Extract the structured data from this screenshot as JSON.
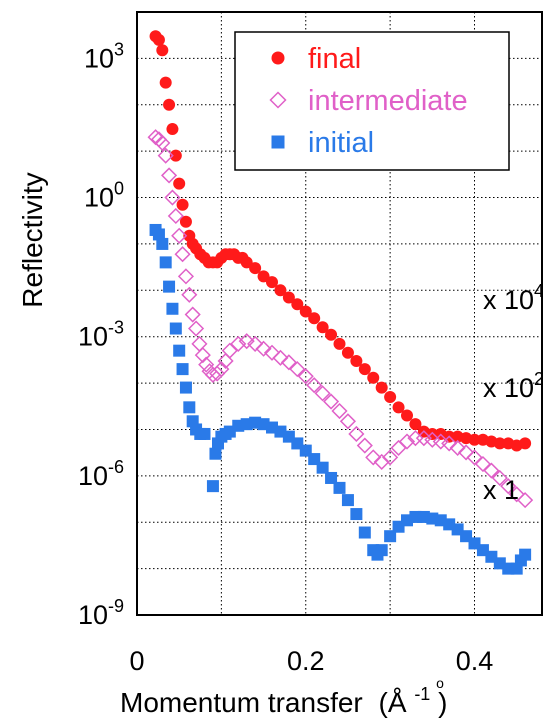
{
  "chart_data": {
    "type": "scatter",
    "xlabel": "Momentum transfer",
    "xlabel_unit": "(Å",
    "xlabel_unit_sup": "-1",
    "xlabel_unit_close": ")",
    "ylabel": "Reflectivity",
    "yscale": "log",
    "xlim": [
      0,
      0.48
    ],
    "ylim_exponent": [
      -9,
      4
    ],
    "x_ticks": [
      {
        "v": 0,
        "label": "0"
      },
      {
        "v": 0.2,
        "label": "0.2"
      },
      {
        "v": 0.4,
        "label": "0.4"
      }
    ],
    "y_ticks": [
      {
        "exp": -9,
        "base": "10",
        "sup": "-9"
      },
      {
        "exp": -6,
        "base": "10",
        "sup": "-6"
      },
      {
        "exp": -3,
        "base": "10",
        "sup": "-3"
      },
      {
        "exp": 0,
        "base": "10",
        "sup": "0"
      },
      {
        "exp": 3,
        "base": "10",
        "sup": "3"
      }
    ],
    "grid": true,
    "legend_position": "top-right",
    "series": [
      {
        "name": "final",
        "color": "#ff1a1a",
        "marker": "circle",
        "points": [
          [
            0.022,
            3000.0
          ],
          [
            0.026,
            2500.0
          ],
          [
            0.03,
            1500.0
          ],
          [
            0.034,
            300.0
          ],
          [
            0.038,
            100.0
          ],
          [
            0.042,
            30.0
          ],
          [
            0.046,
            8.0
          ],
          [
            0.05,
            2.0
          ],
          [
            0.054,
            0.7
          ],
          [
            0.058,
            0.3
          ],
          [
            0.062,
            0.15
          ],
          [
            0.066,
            0.1
          ],
          [
            0.07,
            0.08
          ],
          [
            0.075,
            0.06
          ],
          [
            0.08,
            0.05
          ],
          [
            0.085,
            0.04
          ],
          [
            0.09,
            0.04
          ],
          [
            0.095,
            0.04
          ],
          [
            0.1,
            0.05
          ],
          [
            0.105,
            0.06
          ],
          [
            0.11,
            0.06
          ],
          [
            0.115,
            0.06
          ],
          [
            0.12,
            0.05
          ],
          [
            0.125,
            0.05
          ],
          [
            0.13,
            0.04
          ],
          [
            0.14,
            0.03
          ],
          [
            0.15,
            0.02
          ],
          [
            0.16,
            0.015
          ],
          [
            0.17,
            0.01
          ],
          [
            0.18,
            0.007
          ],
          [
            0.19,
            0.005
          ],
          [
            0.2,
            0.0035
          ],
          [
            0.21,
            0.0025
          ],
          [
            0.22,
            0.0016
          ],
          [
            0.23,
            0.0011
          ],
          [
            0.24,
            0.0007
          ],
          [
            0.25,
            0.00045
          ],
          [
            0.26,
            0.0003
          ],
          [
            0.27,
            0.0002
          ],
          [
            0.28,
            0.00013
          ],
          [
            0.29,
            8e-05
          ],
          [
            0.3,
            5e-05
          ],
          [
            0.31,
            3e-05
          ],
          [
            0.32,
            2e-05
          ],
          [
            0.33,
            1.3e-05
          ],
          [
            0.34,
            9e-06
          ],
          [
            0.35,
            8e-06
          ],
          [
            0.36,
            8e-06
          ],
          [
            0.37,
            7e-06
          ],
          [
            0.38,
            7e-06
          ],
          [
            0.39,
            6.5e-06
          ],
          [
            0.4,
            6e-06
          ],
          [
            0.41,
            6e-06
          ],
          [
            0.42,
            5.5e-06
          ],
          [
            0.43,
            5e-06
          ],
          [
            0.44,
            5e-06
          ],
          [
            0.45,
            4.5e-06
          ],
          [
            0.46,
            5e-06
          ]
        ]
      },
      {
        "name": "intermediate",
        "color": "#e060c8",
        "marker": "diamond-open",
        "points": [
          [
            0.022,
            20.0
          ],
          [
            0.026,
            18.0
          ],
          [
            0.03,
            15.0
          ],
          [
            0.034,
            8.0
          ],
          [
            0.038,
            3.0
          ],
          [
            0.042,
            1.0
          ],
          [
            0.046,
            0.4
          ],
          [
            0.05,
            0.15
          ],
          [
            0.054,
            0.06
          ],
          [
            0.058,
            0.02
          ],
          [
            0.062,
            0.008
          ],
          [
            0.066,
            0.003
          ],
          [
            0.07,
            0.0015
          ],
          [
            0.074,
            0.0007
          ],
          [
            0.078,
            0.0004
          ],
          [
            0.082,
            0.00025
          ],
          [
            0.086,
            0.00018
          ],
          [
            0.09,
            0.00015
          ],
          [
            0.095,
            0.00016
          ],
          [
            0.1,
            0.0002
          ],
          [
            0.105,
            0.0003
          ],
          [
            0.11,
            0.0005
          ],
          [
            0.12,
            0.0007
          ],
          [
            0.13,
            0.0008
          ],
          [
            0.14,
            0.0007
          ],
          [
            0.15,
            0.00055
          ],
          [
            0.16,
            0.00045
          ],
          [
            0.17,
            0.00035
          ],
          [
            0.18,
            0.00028
          ],
          [
            0.19,
            0.0002
          ],
          [
            0.2,
            0.00014
          ],
          [
            0.21,
            9e-05
          ],
          [
            0.22,
            6e-05
          ],
          [
            0.23,
            4e-05
          ],
          [
            0.24,
            2.5e-05
          ],
          [
            0.25,
            1.5e-05
          ],
          [
            0.26,
            8e-06
          ],
          [
            0.27,
            4.5e-06
          ],
          [
            0.28,
            2.5e-06
          ],
          [
            0.29,
            2e-06
          ],
          [
            0.3,
            2.5e-06
          ],
          [
            0.31,
            4e-06
          ],
          [
            0.32,
            5.5e-06
          ],
          [
            0.33,
            6.5e-06
          ],
          [
            0.34,
            6.5e-06
          ],
          [
            0.35,
            6e-06
          ],
          [
            0.36,
            5.5e-06
          ],
          [
            0.37,
            5e-06
          ],
          [
            0.38,
            4e-06
          ],
          [
            0.39,
            3.2e-06
          ],
          [
            0.4,
            2.5e-06
          ],
          [
            0.41,
            1.8e-06
          ],
          [
            0.42,
            1.3e-06
          ],
          [
            0.43,
            9e-07
          ],
          [
            0.44,
            6e-07
          ],
          [
            0.45,
            4e-07
          ],
          [
            0.46,
            3e-07
          ]
        ]
      },
      {
        "name": "initial",
        "color": "#2a7ae8",
        "marker": "square",
        "points": [
          [
            0.022,
            0.2
          ],
          [
            0.026,
            0.16
          ],
          [
            0.03,
            0.1
          ],
          [
            0.034,
            0.04
          ],
          [
            0.038,
            0.012
          ],
          [
            0.042,
            0.004
          ],
          [
            0.046,
            0.0015
          ],
          [
            0.05,
            0.0005
          ],
          [
            0.054,
            0.0002
          ],
          [
            0.058,
            8e-05
          ],
          [
            0.062,
            3e-05
          ],
          [
            0.066,
            1.5e-05
          ],
          [
            0.07,
            1e-05
          ],
          [
            0.075,
            8e-06
          ],
          [
            0.08,
            8e-06
          ],
          [
            0.09,
            6e-07
          ],
          [
            0.093,
            3e-06
          ],
          [
            0.096,
            5e-06
          ],
          [
            0.1,
            7e-06
          ],
          [
            0.105,
            8e-06
          ],
          [
            0.11,
            9e-06
          ],
          [
            0.12,
            1.2e-05
          ],
          [
            0.13,
            1.3e-05
          ],
          [
            0.14,
            1.4e-05
          ],
          [
            0.15,
            1.3e-05
          ],
          [
            0.16,
            1.1e-05
          ],
          [
            0.17,
            9e-06
          ],
          [
            0.18,
            7e-06
          ],
          [
            0.19,
            5e-06
          ],
          [
            0.2,
            3.5e-06
          ],
          [
            0.21,
            2.3e-06
          ],
          [
            0.22,
            1.5e-06
          ],
          [
            0.23,
            9e-07
          ],
          [
            0.24,
            5.5e-07
          ],
          [
            0.25,
            3e-07
          ],
          [
            0.26,
            1.5e-07
          ],
          [
            0.27,
            6e-08
          ],
          [
            0.28,
            2.5e-08
          ],
          [
            0.285,
            2e-08
          ],
          [
            0.29,
            2.5e-08
          ],
          [
            0.3,
            5e-08
          ],
          [
            0.31,
            8e-08
          ],
          [
            0.32,
            1.1e-07
          ],
          [
            0.33,
            1.3e-07
          ],
          [
            0.34,
            1.3e-07
          ],
          [
            0.35,
            1.2e-07
          ],
          [
            0.36,
            1.1e-07
          ],
          [
            0.37,
            9e-08
          ],
          [
            0.38,
            7e-08
          ],
          [
            0.39,
            5e-08
          ],
          [
            0.4,
            3.5e-08
          ],
          [
            0.41,
            2.5e-08
          ],
          [
            0.42,
            1.8e-08
          ],
          [
            0.43,
            1.3e-08
          ],
          [
            0.44,
            1e-08
          ],
          [
            0.45,
            1e-08
          ],
          [
            0.455,
            1.5e-08
          ],
          [
            0.46,
            2e-08
          ]
        ]
      }
    ],
    "annotations": [
      {
        "text": "x 10",
        "sup": "4",
        "x": 0.41,
        "y_exp": -2.4
      },
      {
        "text": "x 10",
        "sup": "2",
        "x": 0.41,
        "y_exp": -4.3
      },
      {
        "text": "x 1",
        "sup": "",
        "x": 0.41,
        "y_exp": -6.5
      }
    ]
  }
}
